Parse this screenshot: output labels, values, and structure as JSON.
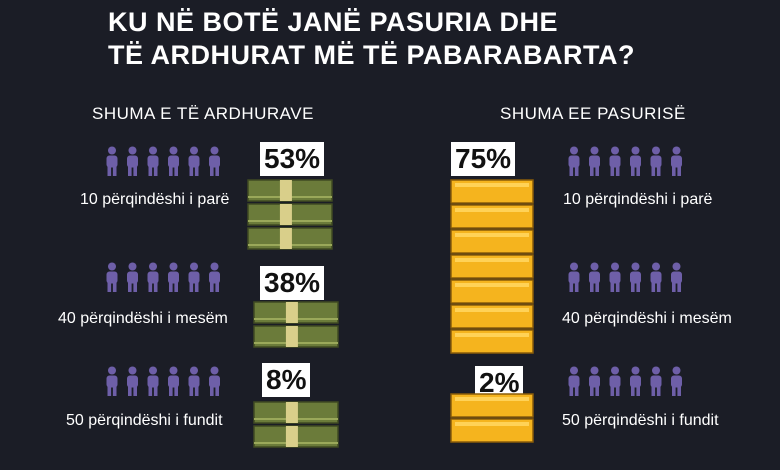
{
  "title": {
    "line1": "KU NË BOTË JANË PASURIA DHE",
    "line2": "TË ARDHURAT MË TË PABARABARTA?"
  },
  "income": {
    "heading": "SHUMA E TË ARDHURAVE",
    "rows": [
      {
        "label": "10 përqindëshi i parë",
        "pct": "53%",
        "value": 53
      },
      {
        "label": "40 përqindëshi i mesëm",
        "pct": "38%",
        "value": 38
      },
      {
        "label": "50 përqindëshi i fundit",
        "pct": "8%",
        "value": 8
      }
    ],
    "icon": "money-stack-icon",
    "color": "#6b7b3a"
  },
  "wealth": {
    "heading": "SHUMA EE PASURISË",
    "rows": [
      {
        "label": "10 përqindëshi i parë",
        "pct": "75%",
        "value": 75
      },
      {
        "label": "40 përqindëshi i mesëm",
        "pct": "",
        "value": null
      },
      {
        "label": "50 përqindëshi i fundit",
        "pct": "2%",
        "value": 2
      }
    ],
    "icon": "gold-bar-icon",
    "color": "#f5b41e"
  },
  "people_icon": "person-icon",
  "people_color": "#6e5fa8"
}
